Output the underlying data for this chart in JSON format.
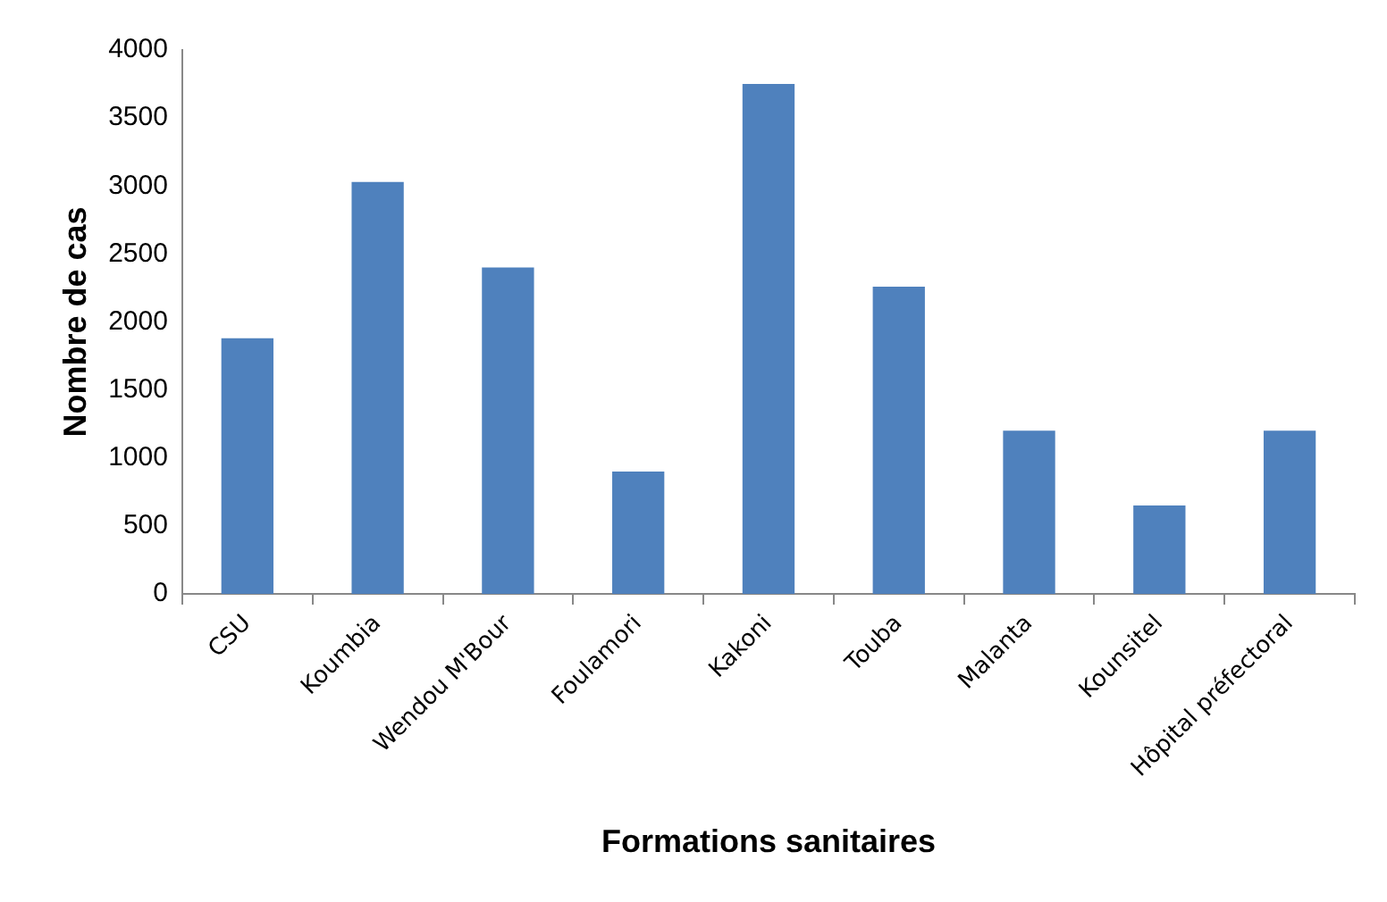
{
  "chart_data": {
    "type": "bar",
    "xlabel": "Formations sanitaires",
    "ylabel": "Nombre de cas",
    "categories": [
      "CSU",
      "Koumbia",
      "Wendou M'Bour",
      "Foulamori",
      "Kakoni",
      "Touba",
      "Malanta",
      "Kounsitel",
      "Hôpital préfectoral"
    ],
    "values": [
      1880,
      3030,
      2400,
      900,
      3750,
      2260,
      1200,
      650,
      1200
    ],
    "color": "#4f81bd",
    "ylim": [
      0,
      4000
    ],
    "yticks": [
      0,
      500,
      1000,
      1500,
      2000,
      2500,
      3000,
      3500,
      4000
    ],
    "grid": false,
    "legend": false
  }
}
